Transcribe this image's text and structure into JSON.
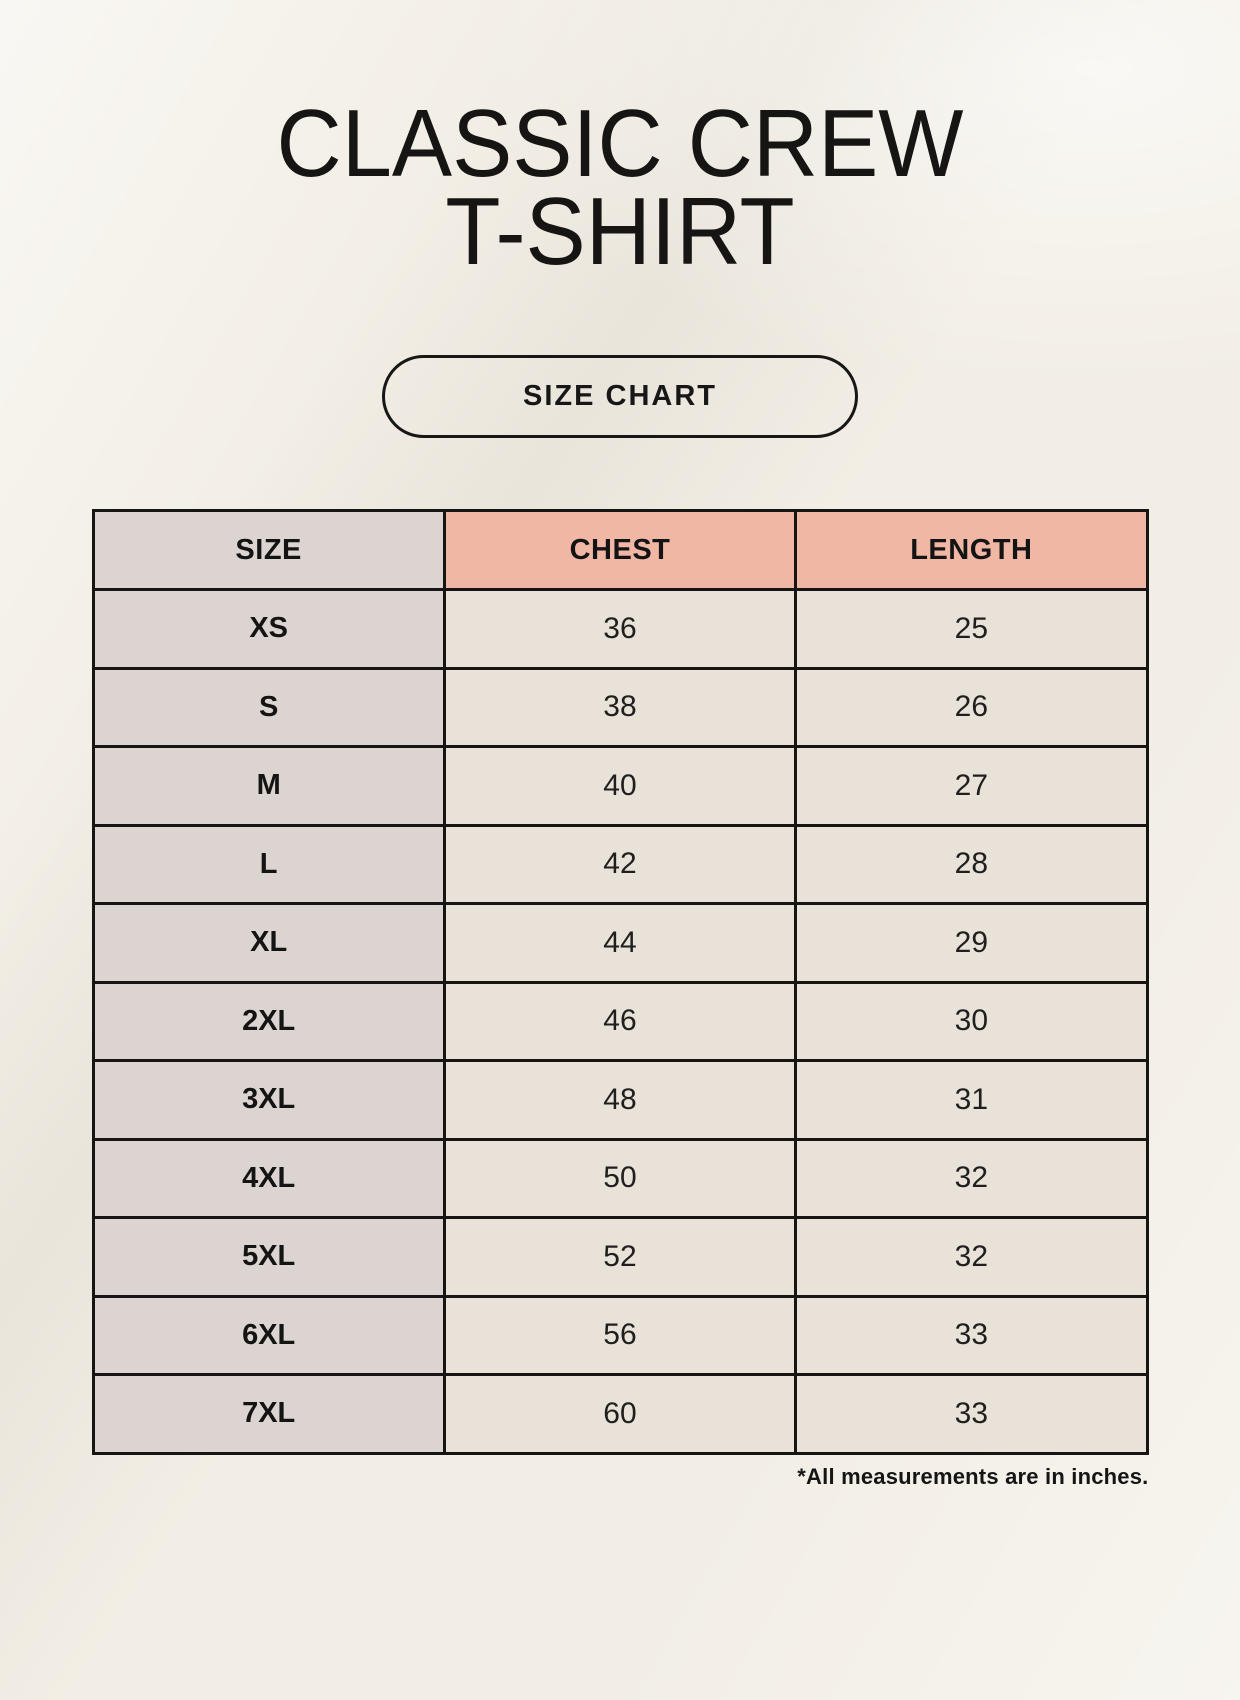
{
  "page": {
    "title_line1": "CLASSIC CREW",
    "title_line2": "T-SHIRT",
    "badge_label": "SIZE CHART",
    "footnote": "*All measurements are in inches."
  },
  "colors": {
    "background": "#f2eee5",
    "header_accent": "#f0b7a5",
    "size_column": "#dcd4d0",
    "data_cell": "#e9e2d8",
    "border": "#171513",
    "text": "#1a1a1a"
  },
  "chart_data": {
    "type": "table",
    "title": "CLASSIC CREW T-SHIRT",
    "units": "inches",
    "columns": [
      "SIZE",
      "CHEST",
      "LENGTH"
    ],
    "rows": [
      [
        "XS",
        "36",
        "25"
      ],
      [
        "S",
        "38",
        "26"
      ],
      [
        "M",
        "40",
        "27"
      ],
      [
        "L",
        "42",
        "28"
      ],
      [
        "XL",
        "44",
        "29"
      ],
      [
        "2XL",
        "46",
        "30"
      ],
      [
        "3XL",
        "48",
        "31"
      ],
      [
        "4XL",
        "50",
        "32"
      ],
      [
        "5XL",
        "52",
        "32"
      ],
      [
        "6XL",
        "56",
        "33"
      ],
      [
        "7XL",
        "60",
        "33"
      ]
    ]
  }
}
